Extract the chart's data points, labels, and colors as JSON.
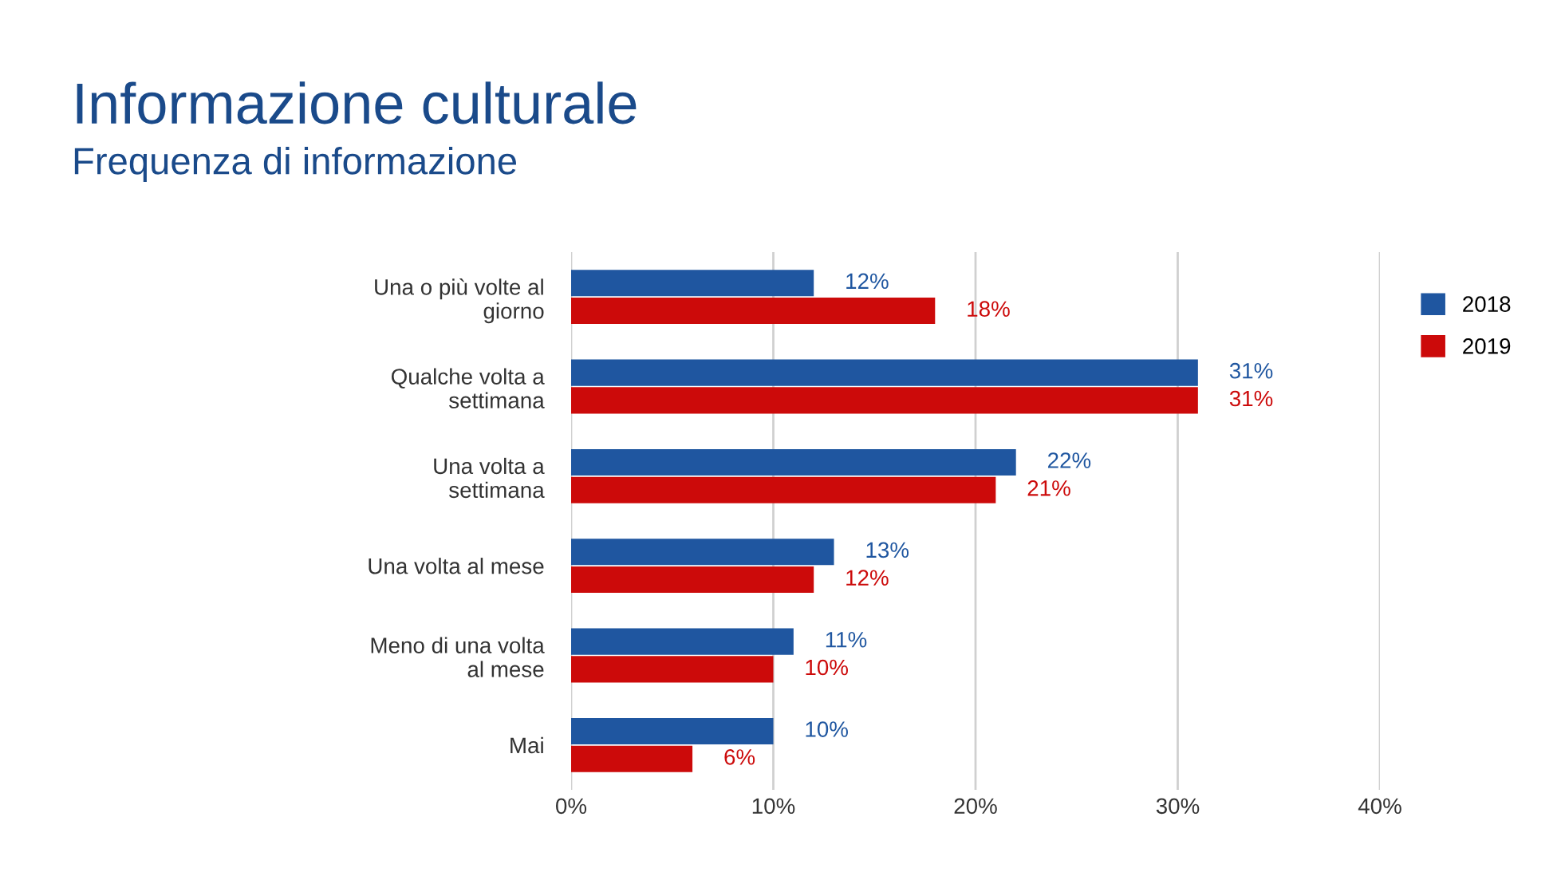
{
  "chart_data": {
    "type": "bar",
    "orientation": "horizontal",
    "title": "Informazione culturale",
    "subtitle": "Frequenza di informazione",
    "categories": [
      "Una o più volte al\ngiorno",
      "Qualche volta a\nsettimana",
      "Una volta a\nsettimana",
      "Una volta al mese",
      "Meno di una volta\nal mese",
      "Mai"
    ],
    "series": [
      {
        "name": "2018",
        "color": "#1f56a0",
        "values": [
          12,
          31,
          22,
          13,
          11,
          10
        ],
        "value_labels": [
          "12%",
          "31%",
          "22%",
          "13%",
          "11%",
          "10%"
        ]
      },
      {
        "name": "2019",
        "color": "#cc0a0a",
        "values": [
          18,
          31,
          21,
          12,
          10,
          6
        ],
        "value_labels": [
          "18%",
          "31%",
          "21%",
          "12%",
          "10%",
          "6%"
        ]
      }
    ],
    "xlim": [
      0,
      40
    ],
    "xticks": [
      {
        "value": 0,
        "label": "0%"
      },
      {
        "value": 10,
        "label": "10%"
      },
      {
        "value": 20,
        "label": "20%"
      },
      {
        "value": 30,
        "label": "30%"
      },
      {
        "value": 40,
        "label": "40%"
      }
    ],
    "grid": "x",
    "legend": "top right"
  }
}
